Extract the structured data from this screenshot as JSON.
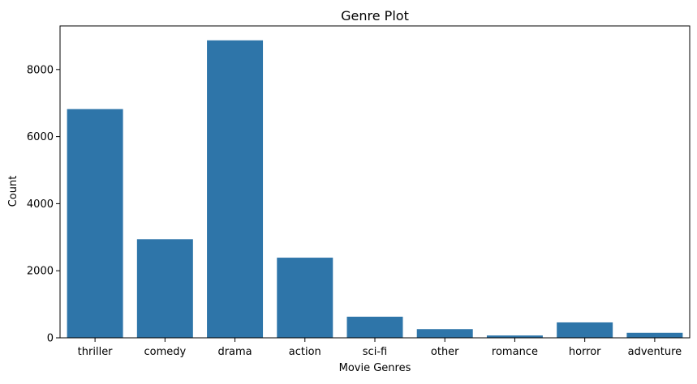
{
  "chart_data": {
    "type": "bar",
    "title": "Genre Plot",
    "xlabel": "Movie Genres",
    "ylabel": "Count",
    "categories": [
      "thriller",
      "comedy",
      "drama",
      "action",
      "sci-fi",
      "other",
      "romance",
      "horror",
      "adventure"
    ],
    "values": [
      6820,
      2940,
      8870,
      2390,
      630,
      260,
      70,
      460,
      150
    ],
    "ylim": [
      0,
      9300
    ],
    "yticks": [
      0,
      2000,
      4000,
      6000,
      8000
    ],
    "ytick_labels": [
      "0",
      "2000",
      "4000",
      "6000",
      "8000"
    ],
    "grid": false,
    "legend": "none",
    "bar_color": "#2e75a9"
  }
}
